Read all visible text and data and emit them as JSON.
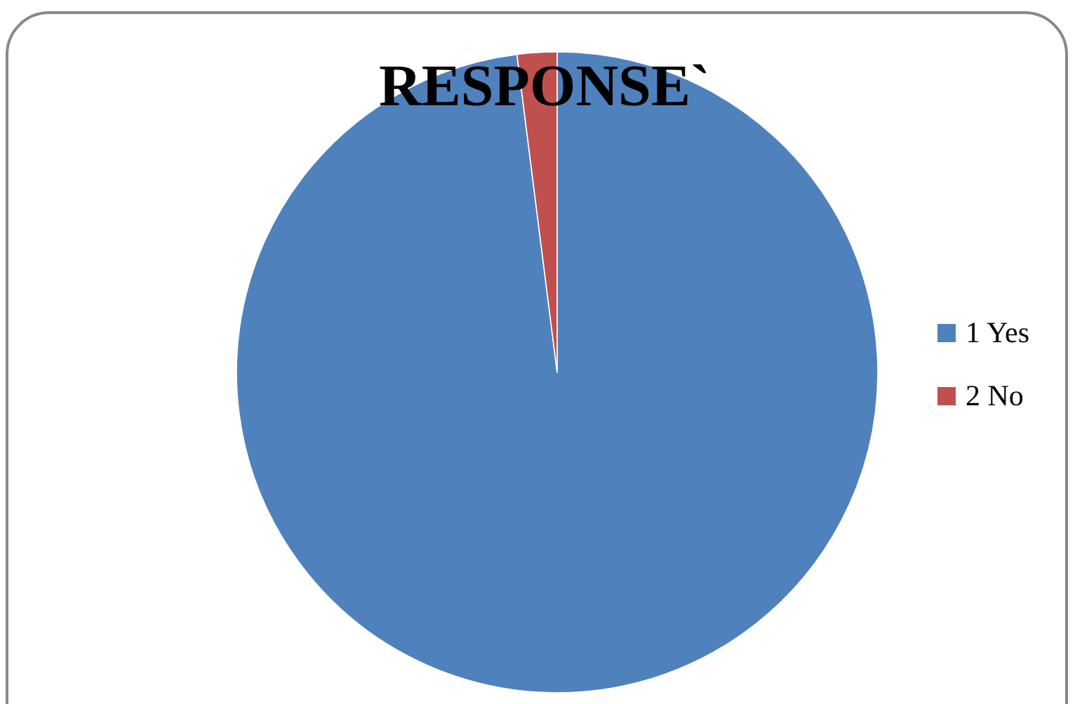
{
  "chart_data": {
    "type": "pie",
    "title": "RESPONSE`",
    "categories": [
      "1 Yes",
      "2 No"
    ],
    "values": [
      98,
      2
    ],
    "colors": [
      "#4f81bd",
      "#c0504d"
    ],
    "legend": "right"
  }
}
